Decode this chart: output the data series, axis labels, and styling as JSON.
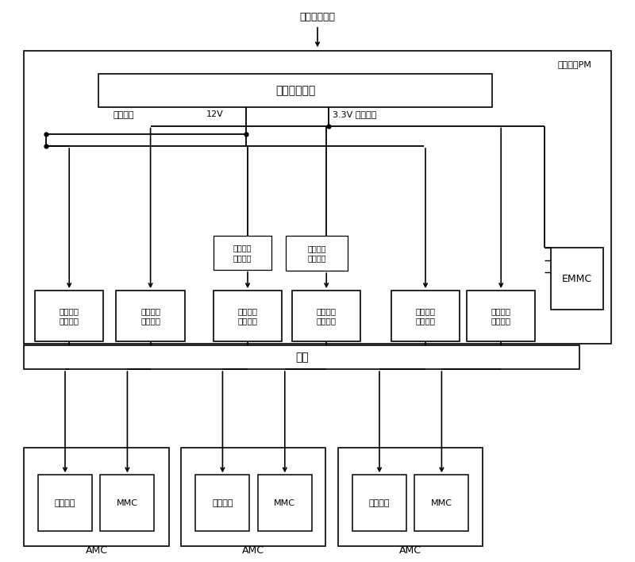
{
  "bg_color": "#ffffff",
  "line_color": "#000000",
  "text_color": "#000000",
  "fig_width": 8.0,
  "fig_height": 7.08,
  "dpi": 100,
  "top_label": "外部电源输入",
  "pm_label": "电源模块PM",
  "power_conv_label": "电源转换模块",
  "load_power_label": "负载电源",
  "v12_label": "12V",
  "v33_label": "3.3V 管理电源",
  "load_ctrl_sig_label": "负载电源\n控制信号",
  "mgmt_ctrl_sig_label": "管理电源\n控制信号",
  "emmc_label": "EMMC",
  "backplane_label": "背板",
  "amc_label": "AMC",
  "load_circuit_label": "负载电路",
  "mmc_label": "MMC",
  "ctrl_box_labels": [
    "负载电源\n控制电路",
    "管理电源\n控制电路",
    "负载电源\n控制电路",
    "管理电源\n控制电路",
    "负载电源\n控制电路",
    "管理电源\n控制电路"
  ]
}
